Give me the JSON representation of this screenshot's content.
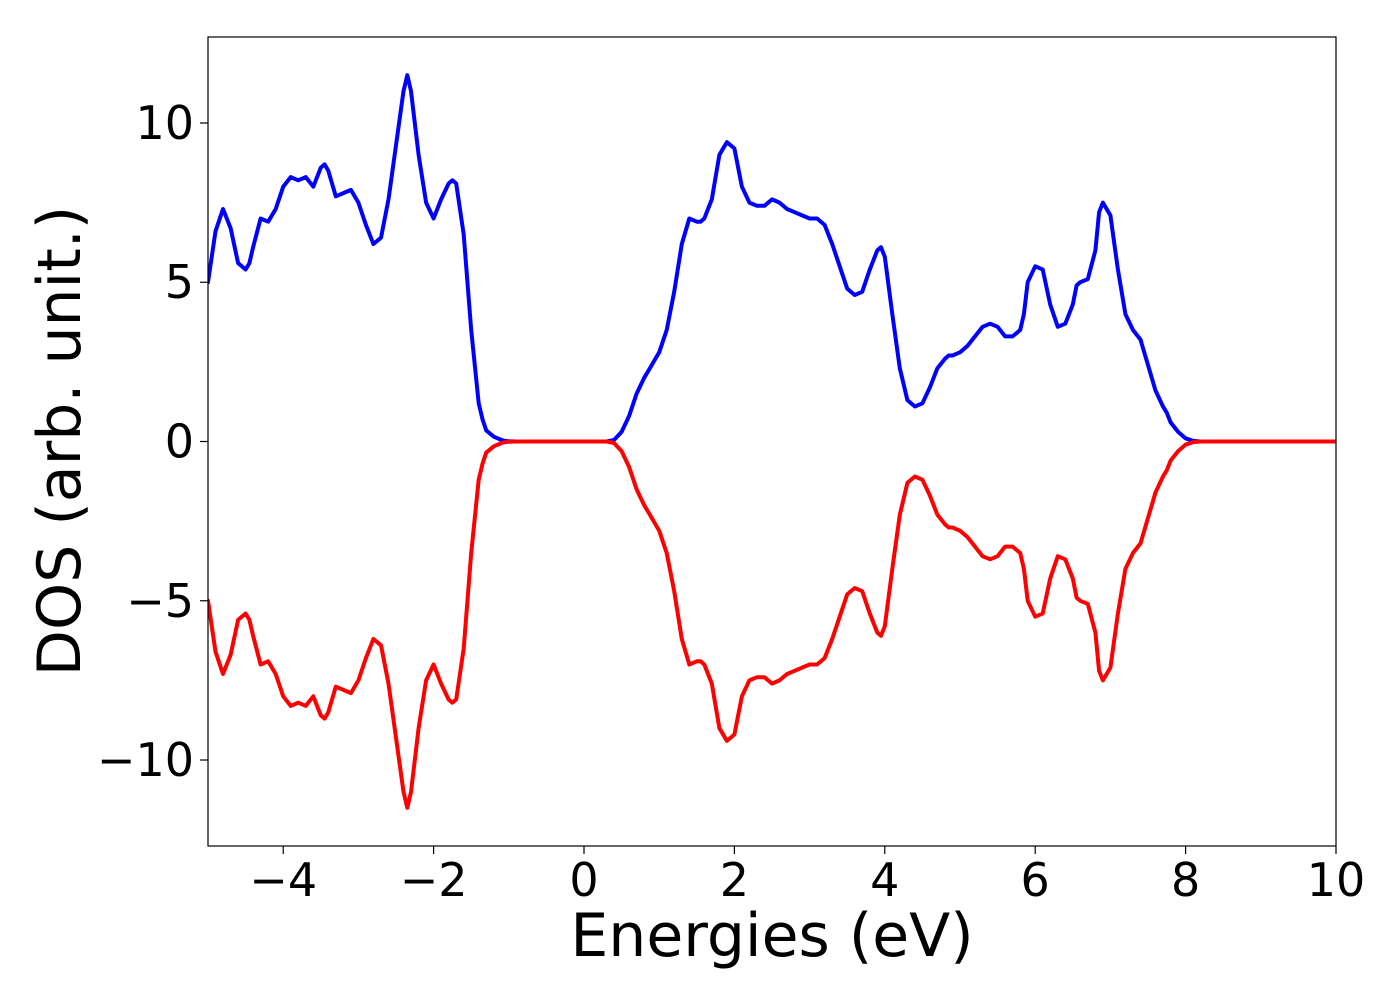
{
  "chart_data": {
    "type": "line",
    "title": "",
    "xlabel": "Energies (eV)",
    "ylabel": "DOS (arb. unit.)",
    "xlim": [
      -5,
      10
    ],
    "ylim": [
      -12.7,
      12.7
    ],
    "xticks": [
      -4,
      -2,
      0,
      2,
      4,
      6,
      8,
      10
    ],
    "xtick_labels": [
      "−4",
      "−2",
      "0",
      "2",
      "4",
      "6",
      "8",
      "10"
    ],
    "yticks": [
      -10,
      -5,
      0,
      5,
      10
    ],
    "ytick_labels": [
      "−10",
      "−5",
      "0",
      "5",
      "10"
    ],
    "grid": false,
    "legend": "none",
    "series": [
      {
        "color": "#0000ff",
        "x": [
          -5.0,
          -4.9,
          -4.8,
          -4.7,
          -4.6,
          -4.5,
          -4.45,
          -4.4,
          -4.3,
          -4.2,
          -4.1,
          -4.0,
          -3.9,
          -3.8,
          -3.7,
          -3.6,
          -3.5,
          -3.45,
          -3.4,
          -3.3,
          -3.2,
          -3.1,
          -3.0,
          -2.9,
          -2.8,
          -2.7,
          -2.6,
          -2.5,
          -2.4,
          -2.35,
          -2.3,
          -2.2,
          -2.1,
          -2.0,
          -1.9,
          -1.8,
          -1.75,
          -1.7,
          -1.6,
          -1.5,
          -1.4,
          -1.35,
          -1.3,
          -1.2,
          -1.1,
          -1.05,
          -1.0,
          -0.9,
          -0.8,
          -0.7,
          -0.6,
          -0.5,
          -0.4,
          -0.3,
          -0.2,
          0.0,
          0.2,
          0.3,
          0.4,
          0.5,
          0.6,
          0.7,
          0.8,
          0.9,
          1.0,
          1.1,
          1.2,
          1.3,
          1.4,
          1.5,
          1.55,
          1.6,
          1.7,
          1.8,
          1.9,
          2.0,
          2.1,
          2.2,
          2.3,
          2.4,
          2.5,
          2.6,
          2.7,
          2.8,
          2.9,
          3.0,
          3.1,
          3.2,
          3.3,
          3.4,
          3.5,
          3.6,
          3.7,
          3.8,
          3.9,
          3.95,
          4.0,
          4.1,
          4.2,
          4.3,
          4.4,
          4.5,
          4.6,
          4.7,
          4.8,
          4.85,
          4.9,
          5.0,
          5.1,
          5.2,
          5.3,
          5.4,
          5.5,
          5.6,
          5.7,
          5.8,
          5.85,
          5.9,
          6.0,
          6.1,
          6.2,
          6.3,
          6.4,
          6.5,
          6.55,
          6.6,
          6.7,
          6.8,
          6.85,
          6.9,
          7.0,
          7.1,
          7.2,
          7.3,
          7.4,
          7.5,
          7.6,
          7.7,
          7.75,
          7.8,
          7.9,
          8.0,
          8.1,
          8.2,
          8.3,
          8.4,
          8.5,
          8.6,
          8.7,
          8.8,
          8.9,
          9.0,
          9.1,
          9.2,
          9.5,
          10.0
        ],
        "y": [
          5.0,
          6.6,
          7.3,
          6.7,
          5.6,
          5.4,
          5.6,
          6.1,
          7.0,
          6.9,
          7.3,
          8.0,
          8.3,
          8.2,
          8.3,
          8.0,
          8.6,
          8.7,
          8.5,
          7.7,
          7.8,
          7.9,
          7.5,
          6.8,
          6.2,
          6.4,
          7.6,
          9.3,
          11.0,
          11.5,
          11.0,
          9.0,
          7.5,
          7.0,
          7.6,
          8.1,
          8.2,
          8.1,
          6.5,
          3.5,
          1.2,
          0.7,
          0.35,
          0.15,
          0.05,
          0.02,
          0.01,
          0.0,
          0.0,
          0.0,
          0.0,
          0.0,
          0.0,
          0.0,
          0.0,
          0.0,
          0.0,
          0.0,
          0.05,
          0.3,
          0.8,
          1.5,
          2.0,
          2.4,
          2.8,
          3.5,
          4.7,
          6.2,
          7.0,
          6.9,
          6.9,
          7.0,
          7.6,
          9.0,
          9.4,
          9.2,
          8.0,
          7.5,
          7.4,
          7.4,
          7.6,
          7.5,
          7.3,
          7.2,
          7.1,
          7.0,
          7.0,
          6.8,
          6.2,
          5.5,
          4.8,
          4.6,
          4.7,
          5.4,
          6.0,
          6.1,
          5.8,
          4.0,
          2.3,
          1.3,
          1.1,
          1.2,
          1.7,
          2.3,
          2.6,
          2.7,
          2.7,
          2.8,
          3.0,
          3.3,
          3.6,
          3.7,
          3.6,
          3.3,
          3.3,
          3.5,
          4.0,
          5.0,
          5.5,
          5.4,
          4.3,
          3.6,
          3.7,
          4.3,
          4.9,
          5.0,
          5.1,
          6.0,
          7.2,
          7.5,
          7.1,
          5.4,
          4.0,
          3.5,
          3.2,
          2.4,
          1.6,
          1.1,
          0.9,
          0.6,
          0.3,
          0.1,
          0.02,
          0.0,
          0.0,
          0.0,
          0.0,
          0.0,
          0.0,
          0.0,
          0.0,
          0.0,
          0.0,
          0.0,
          0.0,
          0.0
        ]
      },
      {
        "color": "#ff0000",
        "mirror_of": 0
      }
    ]
  }
}
